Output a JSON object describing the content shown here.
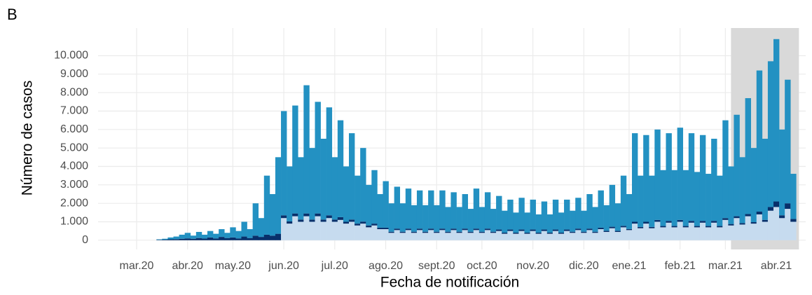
{
  "panel_label": "B",
  "chart_data": {
    "type": "stacked_bar",
    "xlabel": "Fecha de notificación",
    "ylabel": "Número de casos",
    "categories": [
      "mar.20",
      null,
      null,
      null,
      null,
      null,
      null,
      null,
      null,
      "abr.20",
      null,
      null,
      null,
      null,
      null,
      null,
      null,
      "may.20",
      null,
      null,
      null,
      null,
      null,
      null,
      null,
      null,
      "jun.20",
      null,
      null,
      null,
      null,
      null,
      null,
      null,
      null,
      "jul.20",
      null,
      null,
      null,
      null,
      null,
      null,
      null,
      null,
      "ago.20",
      null,
      null,
      null,
      null,
      null,
      null,
      null,
      null,
      "sept.20",
      null,
      null,
      null,
      null,
      null,
      null,
      null,
      "oct.20",
      null,
      null,
      null,
      null,
      null,
      null,
      null,
      null,
      "nov.20",
      null,
      null,
      null,
      null,
      null,
      null,
      null,
      null,
      "dic.20",
      null,
      null,
      null,
      null,
      null,
      null,
      null,
      "ene.21",
      null,
      null,
      null,
      null,
      null,
      null,
      null,
      null,
      "feb.21",
      null,
      null,
      null,
      null,
      null,
      null,
      null,
      "mar.21",
      null,
      null,
      null,
      null,
      null,
      null,
      null,
      null,
      "abr.21",
      null,
      null,
      null
    ],
    "series": [
      {
        "color": "#c6dbef",
        "values": [
          0,
          0,
          0,
          0,
          0,
          0,
          0,
          0,
          0,
          0,
          0,
          0,
          0,
          0,
          0,
          0,
          0,
          0,
          0,
          0,
          0,
          0,
          0,
          0,
          0,
          0,
          1200,
          900,
          1300,
          1000,
          1300,
          1000,
          1300,
          1000,
          1200,
          1000,
          1100,
          900,
          1000,
          800,
          900,
          700,
          800,
          600,
          600,
          400,
          550,
          400,
          550,
          400,
          550,
          400,
          550,
          400,
          550,
          400,
          550,
          400,
          550,
          400,
          550,
          400,
          550,
          400,
          500,
          350,
          500,
          350,
          500,
          350,
          500,
          350,
          500,
          350,
          500,
          350,
          500,
          400,
          550,
          400,
          550,
          400,
          600,
          450,
          650,
          450,
          700,
          550,
          900,
          650,
          900,
          650,
          1000,
          700,
          950,
          700,
          1000,
          700,
          950,
          700,
          950,
          700,
          950,
          700,
          1100,
          800,
          1200,
          850,
          1300,
          900,
          1400,
          1000,
          1600,
          1800,
          1200,
          1700,
          1000
        ]
      },
      {
        "color": "#08306b",
        "values": [
          0,
          0,
          0,
          0,
          20,
          30,
          50,
          60,
          80,
          100,
          80,
          120,
          90,
          150,
          100,
          180,
          120,
          150,
          100,
          200,
          120,
          250,
          180,
          300,
          250,
          350,
          150,
          120,
          150,
          120,
          150,
          120,
          150,
          120,
          150,
          120,
          150,
          100,
          120,
          100,
          110,
          100,
          100,
          80,
          80,
          60,
          80,
          60,
          80,
          60,
          80,
          60,
          80,
          60,
          80,
          60,
          80,
          60,
          80,
          60,
          80,
          60,
          80,
          60,
          80,
          60,
          80,
          60,
          80,
          60,
          80,
          60,
          80,
          60,
          80,
          60,
          80,
          60,
          80,
          60,
          80,
          60,
          80,
          60,
          80,
          60,
          80,
          60,
          100,
          70,
          100,
          70,
          100,
          70,
          100,
          70,
          100,
          70,
          100,
          70,
          100,
          70,
          100,
          70,
          100,
          80,
          100,
          80,
          120,
          80,
          150,
          100,
          200,
          300,
          150,
          300,
          150
        ]
      },
      {
        "color": "#2391c2",
        "values": [
          0,
          0,
          0,
          0,
          30,
          50,
          100,
          140,
          220,
          300,
          170,
          330,
          210,
          350,
          250,
          420,
          280,
          550,
          400,
          800,
          480,
          1750,
          1020,
          3200,
          2250,
          4150,
          5650,
          2980,
          5850,
          3380,
          6950,
          3880,
          6050,
          4380,
          5850,
          3380,
          5250,
          3000,
          4680,
          2600,
          3990,
          2200,
          2900,
          1820,
          2520,
          1540,
          2270,
          1540,
          2170,
          1440,
          2070,
          1440,
          2070,
          1440,
          2070,
          1340,
          1970,
          1340,
          1870,
          1240,
          2170,
          1340,
          1970,
          1240,
          1820,
          1190,
          1620,
          1090,
          1720,
          1090,
          1620,
          990,
          1520,
          990,
          1620,
          1090,
          1620,
          1140,
          1670,
          1140,
          1870,
          1340,
          2020,
          1390,
          2270,
          1490,
          2720,
          1890,
          4800,
          2780,
          4700,
          2780,
          4900,
          3030,
          4750,
          3030,
          5000,
          3030,
          4750,
          2930,
          4650,
          2830,
          4450,
          2730,
          5300,
          3120,
          5500,
          3570,
          6280,
          4020,
          7650,
          4400,
          7900,
          8800,
          4650,
          6700,
          2450
        ]
      }
    ],
    "ylim": [
      -500,
      11500
    ],
    "yticks": [
      0,
      {
        "value": 1000,
        "label": "1.000"
      },
      {
        "value": 2000,
        "label": "2.000"
      },
      {
        "value": 3000,
        "label": "3.000"
      },
      {
        "value": 4000,
        "label": "4.000"
      },
      {
        "value": 5000,
        "label": "5.000"
      },
      {
        "value": 6000,
        "label": "6.000"
      },
      {
        "value": 7000,
        "label": "7.000"
      },
      {
        "value": 8000,
        "label": "8.000"
      },
      {
        "value": 9000,
        "label": "9.000"
      },
      {
        "value": 10000,
        "label": "10.000"
      }
    ],
    "grid": true
  }
}
